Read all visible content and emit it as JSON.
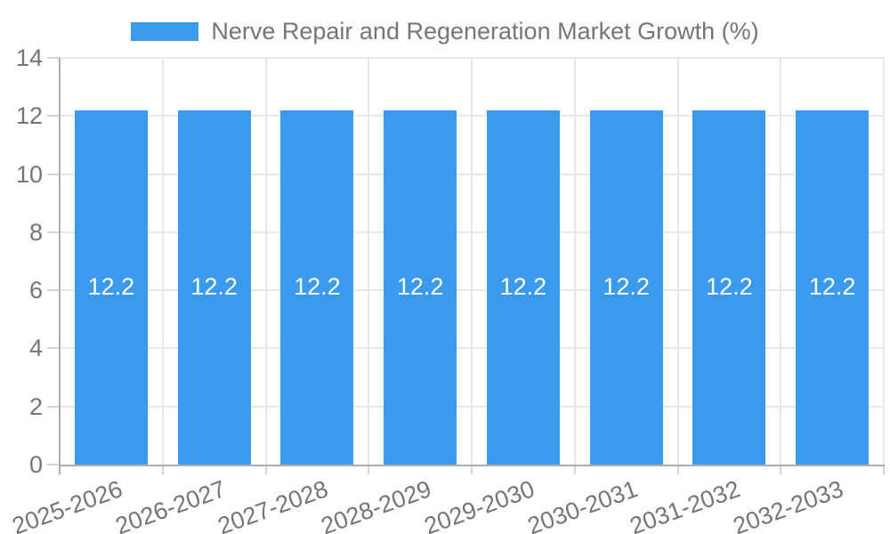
{
  "chart_data": {
    "type": "bar",
    "legend": "Nerve Repair and Regeneration Market Growth (%)",
    "legend_position": "top",
    "categories": [
      "2025-2026",
      "2026-2027",
      "2027-2028",
      "2028-2029",
      "2029-2030",
      "2030-2031",
      "2031-2032",
      "2032-2033"
    ],
    "values": [
      12.2,
      12.2,
      12.2,
      12.2,
      12.2,
      12.2,
      12.2,
      12.2
    ],
    "value_labels": [
      "12.2",
      "12.2",
      "12.2",
      "12.2",
      "12.2",
      "12.2",
      "12.2",
      "12.2"
    ],
    "xlabel": "",
    "ylabel": "",
    "ylim": [
      0,
      14
    ],
    "yticks": [
      0,
      2,
      4,
      6,
      8,
      10,
      12,
      14
    ],
    "grid": true,
    "x_label_rotation_deg": -20,
    "colors": {
      "bar": "#3b99ee",
      "label_text": "#757575",
      "value_text": "#ffffff",
      "gridline": "#e8e8e8",
      "tick": "#d4d4d4",
      "axis": "#adadad",
      "background": "#ffffff"
    }
  }
}
